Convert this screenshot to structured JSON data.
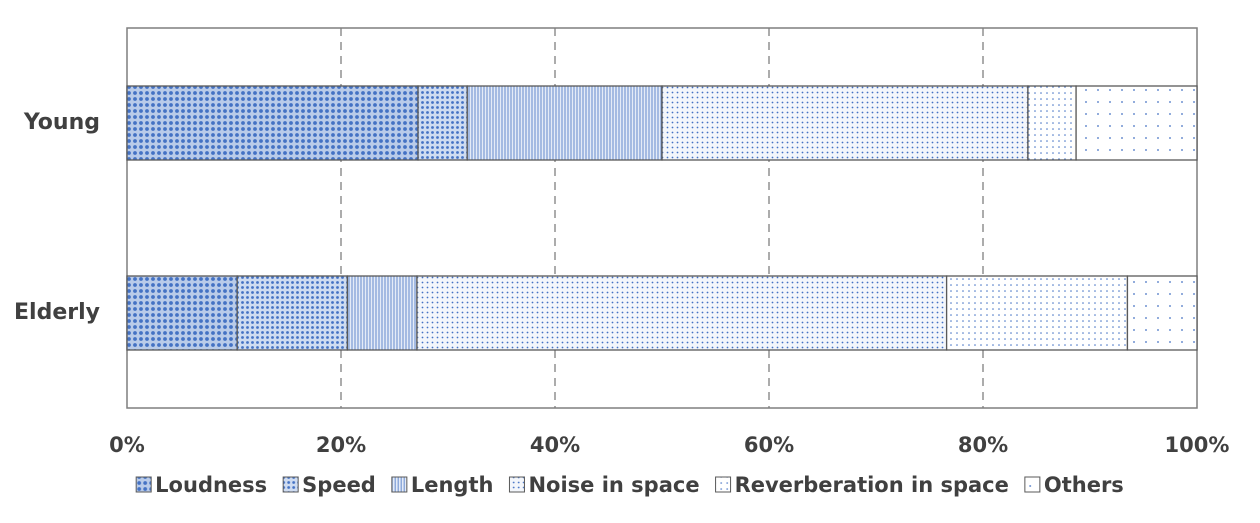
{
  "chart_data": {
    "type": "stacked-bar-horizontal",
    "categories": [
      "Young",
      "Elderly"
    ],
    "series": [
      {
        "name": "Loudness",
        "color": "#4472c4",
        "values": [
          27.2,
          10.3
        ]
      },
      {
        "name": "Speed",
        "color": "#4472c4",
        "values": [
          4.6,
          10.3
        ]
      },
      {
        "name": "Length",
        "color": "#4472c4",
        "values": [
          18.2,
          6.5
        ]
      },
      {
        "name": "Noise in space",
        "color": "#4472c4",
        "values": [
          34.2,
          49.5
        ]
      },
      {
        "name": "Reverberation in space",
        "color": "#4472c4",
        "values": [
          4.5,
          16.9
        ]
      },
      {
        "name": "Others",
        "color": "#4472c4",
        "values": [
          11.3,
          6.5
        ]
      }
    ],
    "xlim": [
      0,
      100
    ],
    "xticks": [
      {
        "value": 0,
        "label": "0%"
      },
      {
        "value": 20,
        "label": "20%"
      },
      {
        "value": 40,
        "label": "40%"
      },
      {
        "value": 60,
        "label": "60%"
      },
      {
        "value": 80,
        "label": "80%"
      },
      {
        "value": 100,
        "label": "100%"
      }
    ],
    "grid": true,
    "legend": "bottom"
  }
}
